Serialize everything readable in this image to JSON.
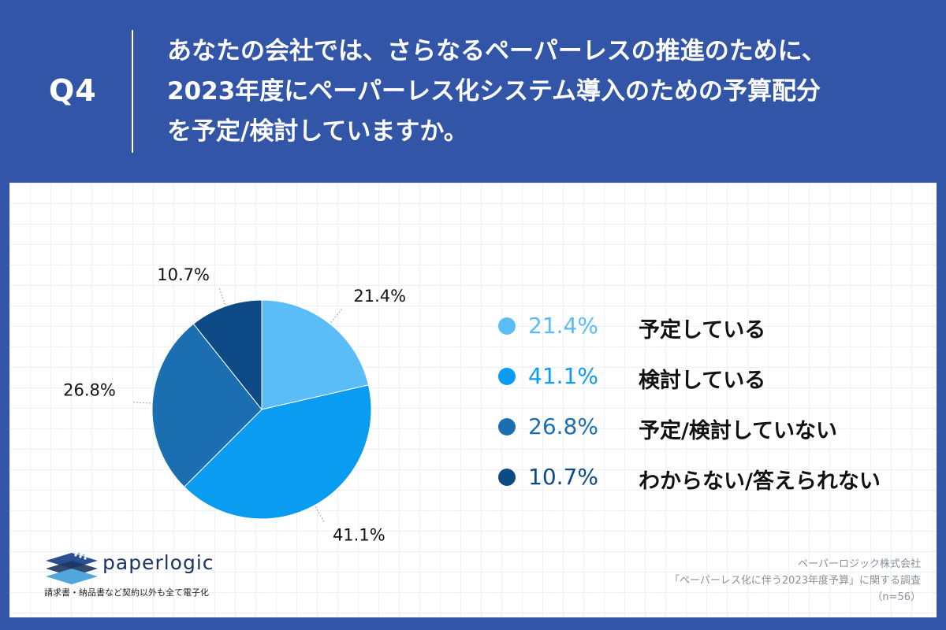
{
  "header": {
    "qnum": "Q4",
    "question_lines": [
      "あなたの会社では、さらなるペーパーレスの推進のために、",
      "2023年度にペーパーレス化システム導入のための予算配分",
      "を予定/検討していますか。"
    ]
  },
  "chart_data": {
    "type": "pie",
    "categories": [
      "予定している",
      "検討している",
      "予定/検討していない",
      "わからない/答えられない"
    ],
    "values": [
      21.4,
      41.1,
      26.8,
      10.7
    ],
    "value_labels": [
      "21.4%",
      "41.1%",
      "26.8%",
      "10.7%"
    ],
    "colors": [
      "#5bbdf7",
      "#0a9cf0",
      "#1b6fb1",
      "#0d4a86"
    ],
    "start": "12 o'clock",
    "direction": "clockwise"
  },
  "legend": {
    "items": [
      {
        "pct": "21.4%",
        "label": "予定している",
        "color": "#5bbdf7"
      },
      {
        "pct": "41.1%",
        "label": "検討している",
        "color": "#0a9cf0"
      },
      {
        "pct": "26.8%",
        "label": "予定/検討していない",
        "color": "#1b6fb1"
      },
      {
        "pct": "10.7%",
        "label": "わからない/答えられない",
        "color": "#0d4a86"
      }
    ]
  },
  "logo": {
    "name": "paperlogic",
    "tagline": "請求書・納品書など契約以外も全て電子化",
    "icon": "stacked-layers-icon"
  },
  "source": {
    "company": "ペーパーロジック株式会社",
    "survey": "「ペーパーレス化に伴う2023年度予算」に関する調査",
    "n": "（n=56）"
  }
}
